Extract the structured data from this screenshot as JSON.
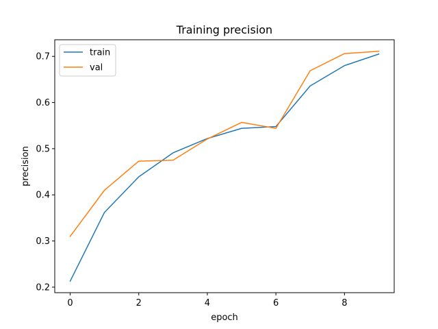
{
  "chart_data": {
    "type": "line",
    "title": "Training precision",
    "xlabel": "epoch",
    "ylabel": "precision",
    "x": [
      0,
      1,
      2,
      3,
      4,
      5,
      6,
      7,
      8,
      9
    ],
    "xlim": [
      -0.45,
      9.45
    ],
    "ylim": [
      0.188,
      0.736
    ],
    "xticks": [
      0,
      2,
      4,
      6,
      8
    ],
    "yticks": [
      0.2,
      0.3,
      0.4,
      0.5,
      0.6,
      0.7
    ],
    "xtick_labels": [
      "0",
      "2",
      "4",
      "6",
      "8"
    ],
    "ytick_labels": [
      "0.2",
      "0.3",
      "0.4",
      "0.5",
      "0.6",
      "0.7"
    ],
    "grid": false,
    "legend_position": "upper-left",
    "series": [
      {
        "name": "train",
        "color": "#1f77b4",
        "values": [
          0.213,
          0.362,
          0.439,
          0.491,
          0.522,
          0.544,
          0.548,
          0.636,
          0.68,
          0.705
        ]
      },
      {
        "name": "val",
        "color": "#ff7f0e",
        "values": [
          0.31,
          0.41,
          0.473,
          0.475,
          0.521,
          0.557,
          0.544,
          0.669,
          0.706,
          0.711
        ]
      }
    ]
  }
}
